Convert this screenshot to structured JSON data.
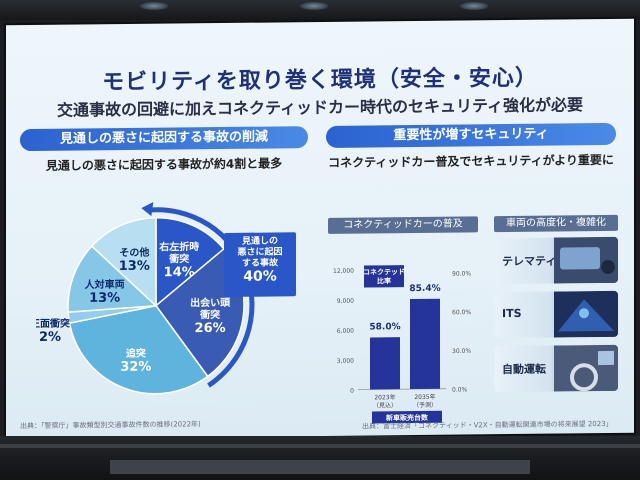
{
  "slide": {
    "title": "モビリティを取り巻く環境（安全・安心）",
    "subtitle": "交通事故の回避に加えコネクティッドカー時代のセキュリティ強化が必要"
  },
  "left": {
    "heading": "見通しの悪さに起因する事故の削減",
    "caption": "見通しの悪さに起因する事故が約4割と最多",
    "slices": [
      {
        "label": "右左折時\n衝突",
        "pct": "14%",
        "value": 14,
        "color": "#2a57c8"
      },
      {
        "label": "出会い頭\n衝突",
        "pct": "26%",
        "value": 26,
        "color": "#3a5bb3"
      },
      {
        "label": "追突",
        "pct": "32%",
        "value": 32,
        "color": "#5fb4de"
      },
      {
        "label": "正面衝突",
        "pct": "2%",
        "value": 2,
        "color": "#93cdeb"
      },
      {
        "label": "人対車両",
        "pct": "13%",
        "value": 13,
        "color": "#86c7e8"
      },
      {
        "label": "その他",
        "pct": "13%",
        "value": 13,
        "color": "#b8def2"
      }
    ],
    "callout_text": "見通しの\n悪さに起因\nする事故",
    "callout_pct": "40%",
    "source": "出典：「警察庁」事故類型別交通事故件数の推移(2022年)"
  },
  "right": {
    "heading": "重要性が増すセキュリティ",
    "caption": "コネクティッドカー普及でセキュリティがより重要に",
    "chart_heading": "コネクティッドカーの普及",
    "tiles_heading": "車両の高度化・複雑化",
    "tiles": [
      "テレマティクス",
      "ITS",
      "自動運転"
    ],
    "source": "出典：富士経済「コネクティッド・V2X・自動運転関連市場の将来展望 2023」"
  },
  "chart_data": {
    "type": "bar",
    "categories": [
      "2023年\n（見込）",
      "2035年\n（予測）"
    ],
    "values": [
      5200,
      9000
    ],
    "ratio": [
      58.0,
      85.4
    ],
    "ratio_labels": [
      "58.0%",
      "85.4%"
    ],
    "ylim": [
      0,
      12000
    ],
    "yticks": [
      "12,000",
      "9,000",
      "6,000",
      "3,000",
      "0"
    ],
    "y2ticks": [
      "90.0%",
      "60.0%",
      "30.0%",
      "0.0%"
    ],
    "legend": "新車販売台数",
    "annotation": "コネクテッド\n比率",
    "color": "#25349a"
  }
}
